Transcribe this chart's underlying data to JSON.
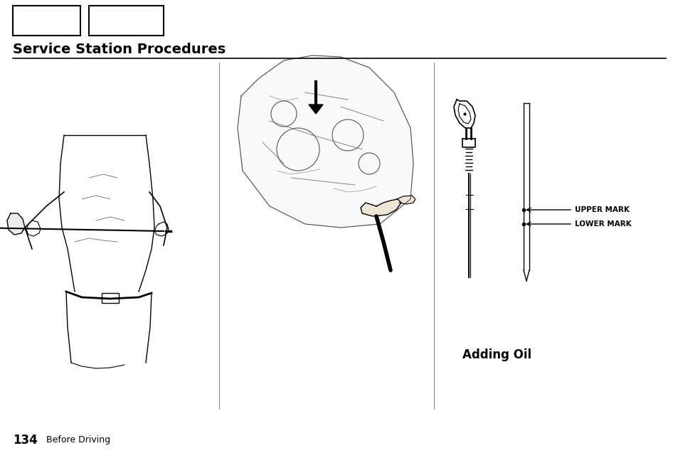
{
  "title": "Service Station Procedures",
  "page_number": "134",
  "page_section": "Before Driving",
  "upper_mark_label": "UPPER MARK",
  "lower_mark_label": "LOWER MARK",
  "adding_oil_label": "Adding Oil",
  "bg_color": "#ffffff",
  "text_color": "#000000",
  "fig_width": 9.54,
  "fig_height": 6.44,
  "dpi": 100
}
